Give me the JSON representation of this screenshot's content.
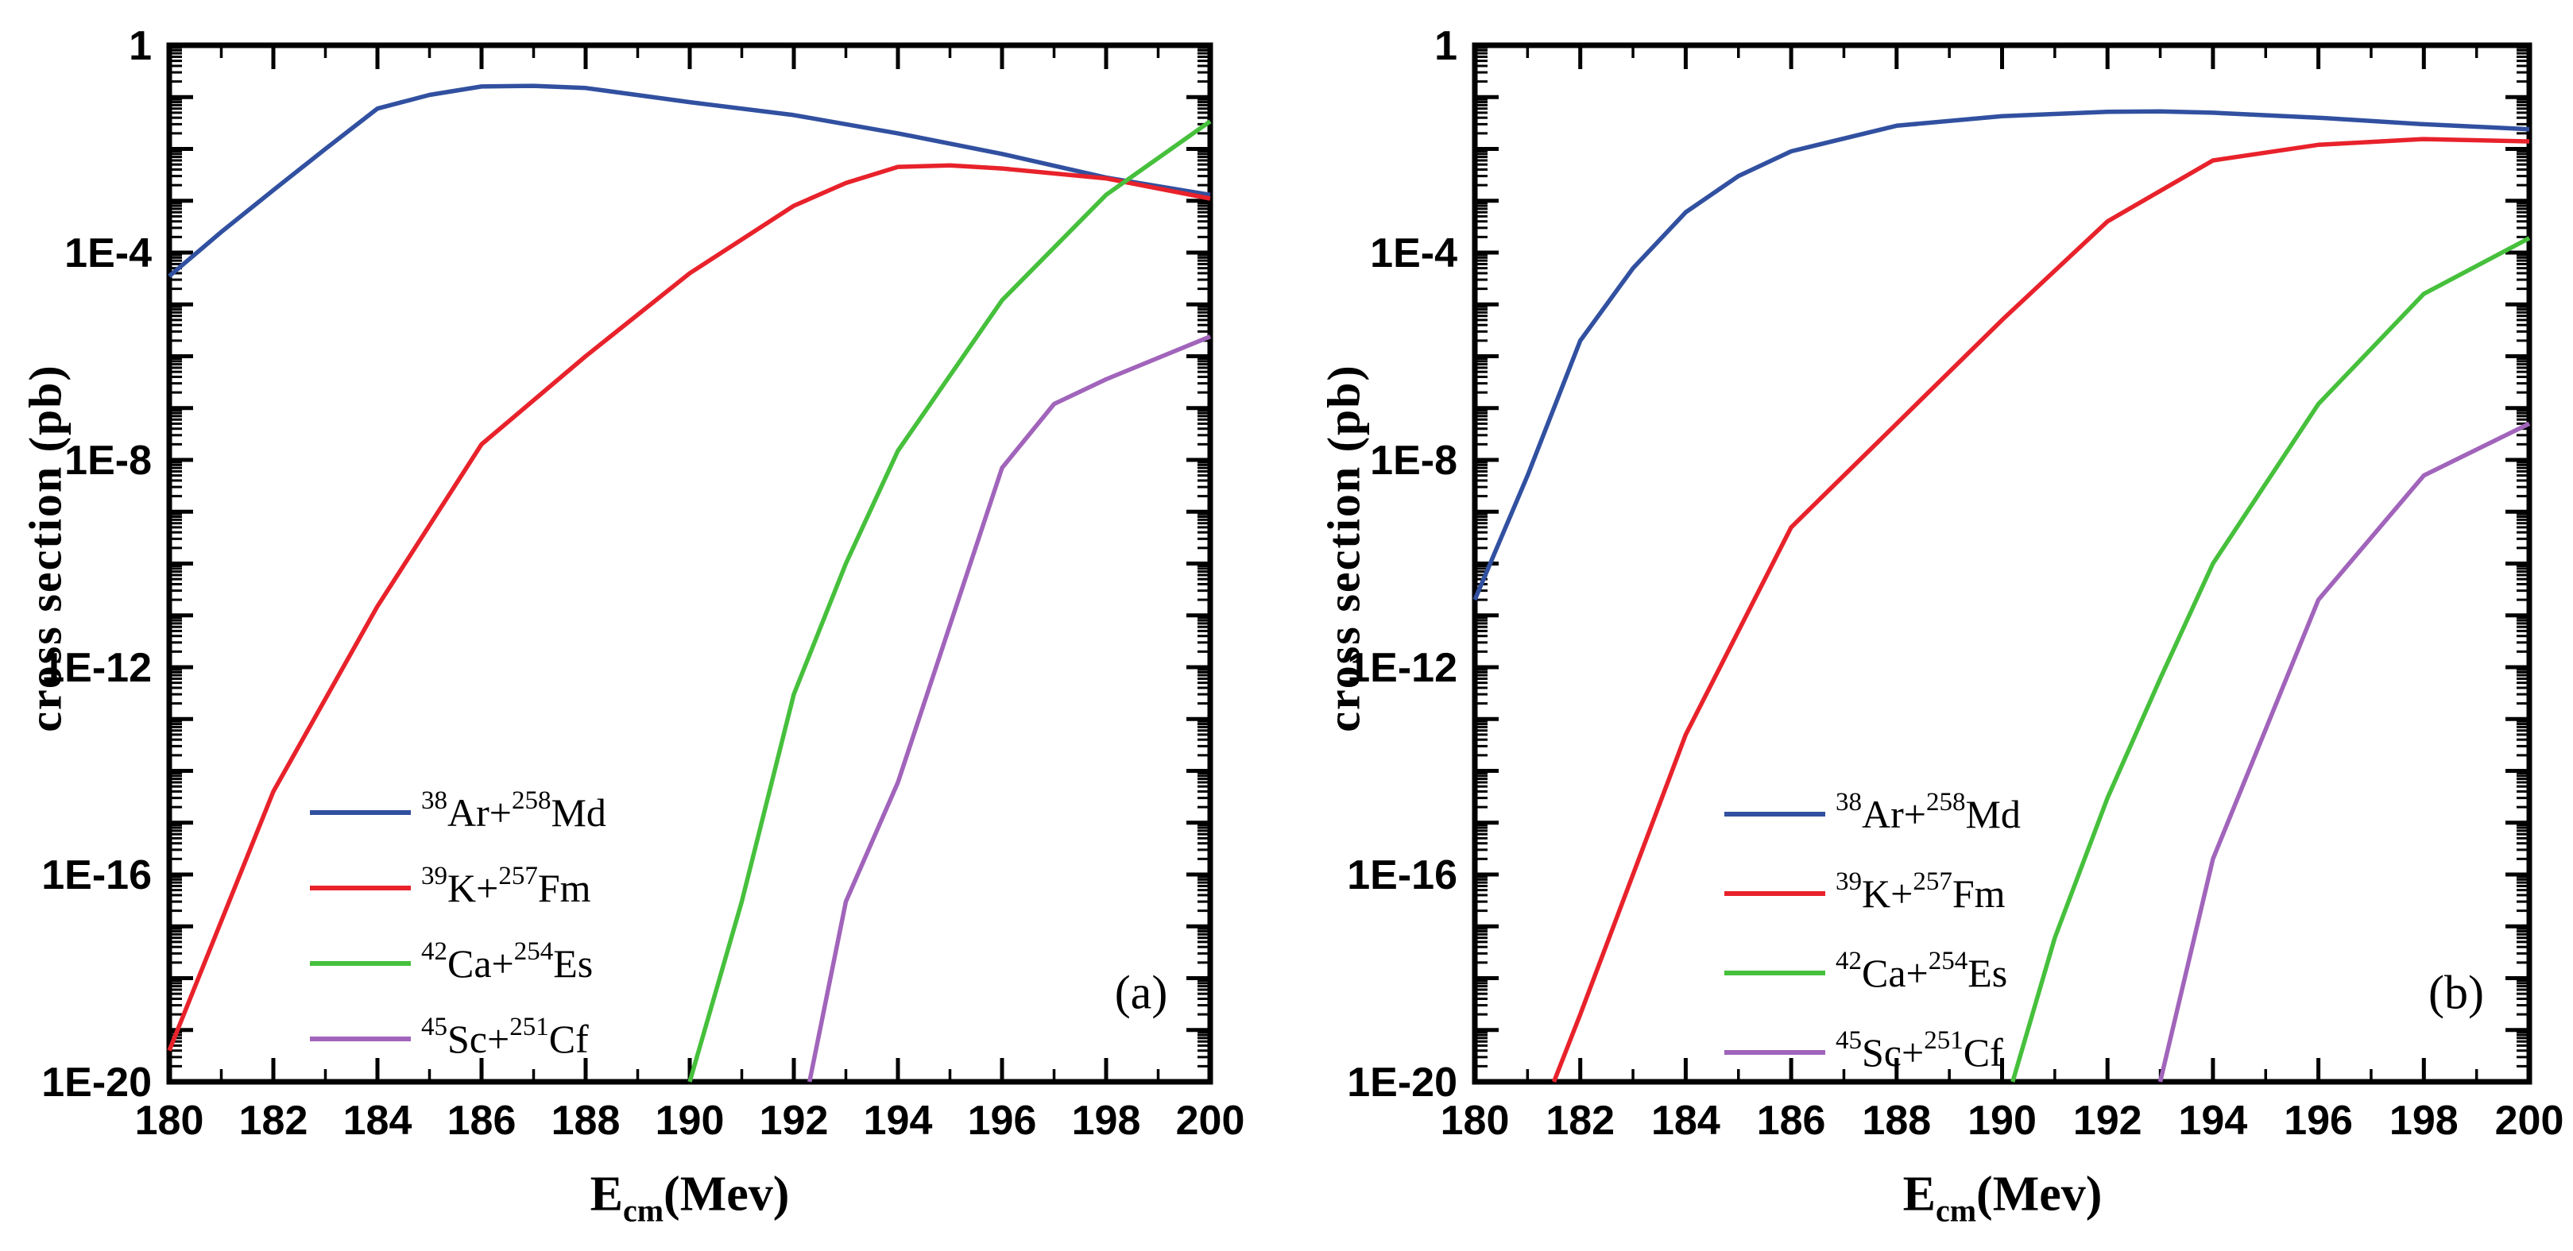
{
  "figure": {
    "background": "#ffffff",
    "axis_color": "#000000",
    "text_color": "#000000"
  },
  "chart_data": [
    {
      "type": "line",
      "panel_label": "(a)",
      "title": "",
      "xlabel": {
        "symbol": "E",
        "subscript": "cm",
        "unit": "(Mev)"
      },
      "ylabel": "cross section (pb)",
      "xlim": [
        180,
        200
      ],
      "ylim_exp": [
        -20,
        0
      ],
      "x_scale": "linear",
      "y_scale": "log",
      "grid": false,
      "legend_position": "inside-lower-left",
      "x_tick_values": [
        180,
        182,
        184,
        186,
        188,
        190,
        192,
        194,
        196,
        198,
        200
      ],
      "x_tick_labels": [
        "180",
        "182",
        "184",
        "186",
        "188",
        "190",
        "192",
        "194",
        "196",
        "198",
        "200"
      ],
      "x_minor_step": 1,
      "y_ticks": [
        {
          "label": "1",
          "exp": 0
        },
        {
          "label": "1E-4",
          "exp": -4
        },
        {
          "label": "1E-8",
          "exp": -8
        },
        {
          "label": "1E-12",
          "exp": -12
        },
        {
          "label": "1E-16",
          "exp": -16
        },
        {
          "label": "1E-20",
          "exp": -20
        }
      ],
      "series": [
        {
          "id": "ar38-md258",
          "name": "38Ar+258Md",
          "color": "#3150a0",
          "label_parts": {
            "sup1": "38",
            "base1": "Ar+",
            "sup2": "258",
            "base2": "Md"
          },
          "points": [
            [
              180,
              3.5e-05
            ],
            [
              181,
              0.00025
            ],
            [
              182,
              0.0016
            ],
            [
              183,
              0.01
            ],
            [
              184,
              0.06
            ],
            [
              185,
              0.11
            ],
            [
              186,
              0.16
            ],
            [
              187,
              0.165
            ],
            [
              188,
              0.15
            ],
            [
              190,
              0.08
            ],
            [
              192,
              0.045
            ],
            [
              194,
              0.02
            ],
            [
              196,
              0.008
            ],
            [
              198,
              0.0028
            ],
            [
              200,
              0.0013
            ]
          ]
        },
        {
          "id": "k39-fm257",
          "name": "39K+257Fm",
          "color": "#e8222b",
          "label_parts": {
            "sup1": "39",
            "base1": "K+",
            "sup2": "257",
            "base2": "Fm"
          },
          "points": [
            [
              180,
              4e-20
            ],
            [
              182,
              4e-15
            ],
            [
              184,
              1.5e-11
            ],
            [
              186,
              2e-08
            ],
            [
              188,
              1e-06
            ],
            [
              190,
              4e-05
            ],
            [
              192,
              0.0008
            ],
            [
              193,
              0.0022
            ],
            [
              194,
              0.0045
            ],
            [
              195,
              0.0048
            ],
            [
              196,
              0.0042
            ],
            [
              198,
              0.0027
            ],
            [
              200,
              0.0011
            ]
          ]
        },
        {
          "id": "ca42-es254",
          "name": "42Ca+254Es",
          "color": "#46c03c",
          "label_parts": {
            "sup1": "42",
            "base1": "Ca+",
            "sup2": "254",
            "base2": "Es"
          },
          "points": [
            [
              190,
              1e-20
            ],
            [
              191,
              3e-17
            ],
            [
              192,
              3e-13
            ],
            [
              193,
              1e-10
            ],
            [
              194,
              1.5e-08
            ],
            [
              196,
              1.2e-05
            ],
            [
              198,
              0.0013
            ],
            [
              200,
              0.034
            ]
          ]
        },
        {
          "id": "sc45-cf251",
          "name": "45Sc+251Cf",
          "color": "#a164bb",
          "label_parts": {
            "sup1": "45",
            "base1": "Sc+",
            "sup2": "251",
            "base2": "Cf"
          },
          "points": [
            [
              192.3,
              1e-20
            ],
            [
              193,
              3e-17
            ],
            [
              194,
              6e-15
            ],
            [
              196,
              7e-09
            ],
            [
              197,
              1.2e-07
            ],
            [
              198,
              3.6e-07
            ],
            [
              200,
              2.4e-06
            ]
          ]
        }
      ]
    },
    {
      "type": "line",
      "panel_label": "(b)",
      "title": "",
      "xlabel": {
        "symbol": "E",
        "subscript": "cm",
        "unit": "(Mev)"
      },
      "ylabel": "cross section (pb)",
      "xlim": [
        180,
        200
      ],
      "ylim_exp": [
        -20,
        0
      ],
      "x_scale": "linear",
      "y_scale": "log",
      "grid": false,
      "legend_position": "inside-lower-left",
      "x_tick_values": [
        180,
        182,
        184,
        186,
        188,
        190,
        192,
        194,
        196,
        198,
        200
      ],
      "x_tick_labels": [
        "180",
        "182",
        "184",
        "186",
        "188",
        "190",
        "192",
        "194",
        "196",
        "198",
        "200"
      ],
      "x_minor_step": 1,
      "y_ticks": [
        {
          "label": "1",
          "exp": 0
        },
        {
          "label": "1E-4",
          "exp": -4
        },
        {
          "label": "1E-8",
          "exp": -8
        },
        {
          "label": "1E-12",
          "exp": -12
        },
        {
          "label": "1E-16",
          "exp": -16
        },
        {
          "label": "1E-20",
          "exp": -20
        }
      ],
      "series": [
        {
          "id": "ar38-md258",
          "name": "38Ar+258Md",
          "color": "#3150a0",
          "label_parts": {
            "sup1": "38",
            "base1": "Ar+",
            "sup2": "258",
            "base2": "Md"
          },
          "points": [
            [
              180,
              2e-11
            ],
            [
              181,
              5e-09
            ],
            [
              182,
              2e-06
            ],
            [
              183,
              5e-05
            ],
            [
              184,
              0.0006
            ],
            [
              185,
              0.003
            ],
            [
              186,
              0.009
            ],
            [
              188,
              0.028
            ],
            [
              190,
              0.043
            ],
            [
              192,
              0.052
            ],
            [
              193,
              0.053
            ],
            [
              194,
              0.05
            ],
            [
              196,
              0.04
            ],
            [
              198,
              0.03
            ],
            [
              200,
              0.024
            ]
          ]
        },
        {
          "id": "k39-fm257",
          "name": "39K+257Fm",
          "color": "#e8222b",
          "label_parts": {
            "sup1": "39",
            "base1": "K+",
            "sup2": "257",
            "base2": "Fm"
          },
          "points": [
            [
              181.5,
              1e-20
            ],
            [
              182,
              2e-19
            ],
            [
              184,
              5e-14
            ],
            [
              186,
              5e-10
            ],
            [
              188,
              5e-08
            ],
            [
              190,
              5e-06
            ],
            [
              192,
              0.0004
            ],
            [
              194,
              0.006
            ],
            [
              196,
              0.012
            ],
            [
              198,
              0.0155
            ],
            [
              200,
              0.014
            ]
          ]
        },
        {
          "id": "ca42-es254",
          "name": "42Ca+254Es",
          "color": "#46c03c",
          "label_parts": {
            "sup1": "42",
            "base1": "Ca+",
            "sup2": "254",
            "base2": "Es"
          },
          "points": [
            [
              190.2,
              1e-20
            ],
            [
              191,
              6e-18
            ],
            [
              192,
              3e-15
            ],
            [
              193,
              6e-13
            ],
            [
              194,
              1e-10
            ],
            [
              196,
              1.2e-07
            ],
            [
              198,
              1.6e-05
            ],
            [
              200,
              0.00019
            ]
          ]
        },
        {
          "id": "sc45-cf251",
          "name": "45Sc+251Cf",
          "color": "#a164bb",
          "label_parts": {
            "sup1": "45",
            "base1": "Sc+",
            "sup2": "251",
            "base2": "Cf"
          },
          "points": [
            [
              193,
              1e-20
            ],
            [
              194,
              2e-16
            ],
            [
              196,
              2e-11
            ],
            [
              198,
              5e-09
            ],
            [
              200,
              5e-08
            ]
          ]
        }
      ]
    }
  ]
}
